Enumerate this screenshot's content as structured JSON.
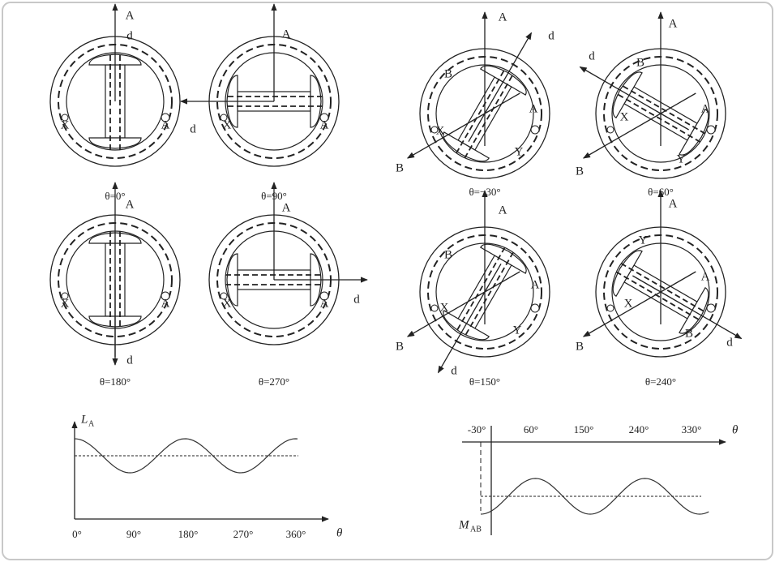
{
  "diagrams": [
    {
      "caption": "θ=0°",
      "labels": [
        "A",
        "d",
        "X",
        "A"
      ]
    },
    {
      "caption": "θ=90°",
      "labels": [
        "A",
        "d",
        "X",
        "A"
      ]
    },
    {
      "caption": "θ=180°",
      "labels": [
        "A",
        "d",
        "X",
        "A"
      ]
    },
    {
      "caption": "θ=270°",
      "labels": [
        "A",
        "d",
        "X",
        "A"
      ]
    },
    {
      "caption": "θ=−30°",
      "labels": [
        "A",
        "d",
        "B",
        "B",
        "A",
        "X",
        "Y"
      ]
    },
    {
      "caption": "θ=60°",
      "labels": [
        "A",
        "d",
        "B",
        "B",
        "A",
        "X",
        "Y"
      ]
    },
    {
      "caption": "θ=150°",
      "labels": [
        "A",
        "d",
        "B",
        "B",
        "A",
        "X",
        "Y"
      ]
    },
    {
      "caption": "θ=240°",
      "labels": [
        "A",
        "d",
        "B",
        "Y",
        "A",
        "X",
        "B"
      ]
    }
  ],
  "plots": [
    {
      "y_label": "L",
      "y_label_sub": "A",
      "x_label": "θ",
      "ticks": [
        "0°",
        "90°",
        "180°",
        "270°",
        "360°"
      ]
    },
    {
      "y_label": "M",
      "y_label_sub": "AB",
      "x_label": "θ",
      "ticks": [
        "-30°",
        "60°",
        "150°",
        "240°",
        "330°"
      ]
    }
  ]
}
